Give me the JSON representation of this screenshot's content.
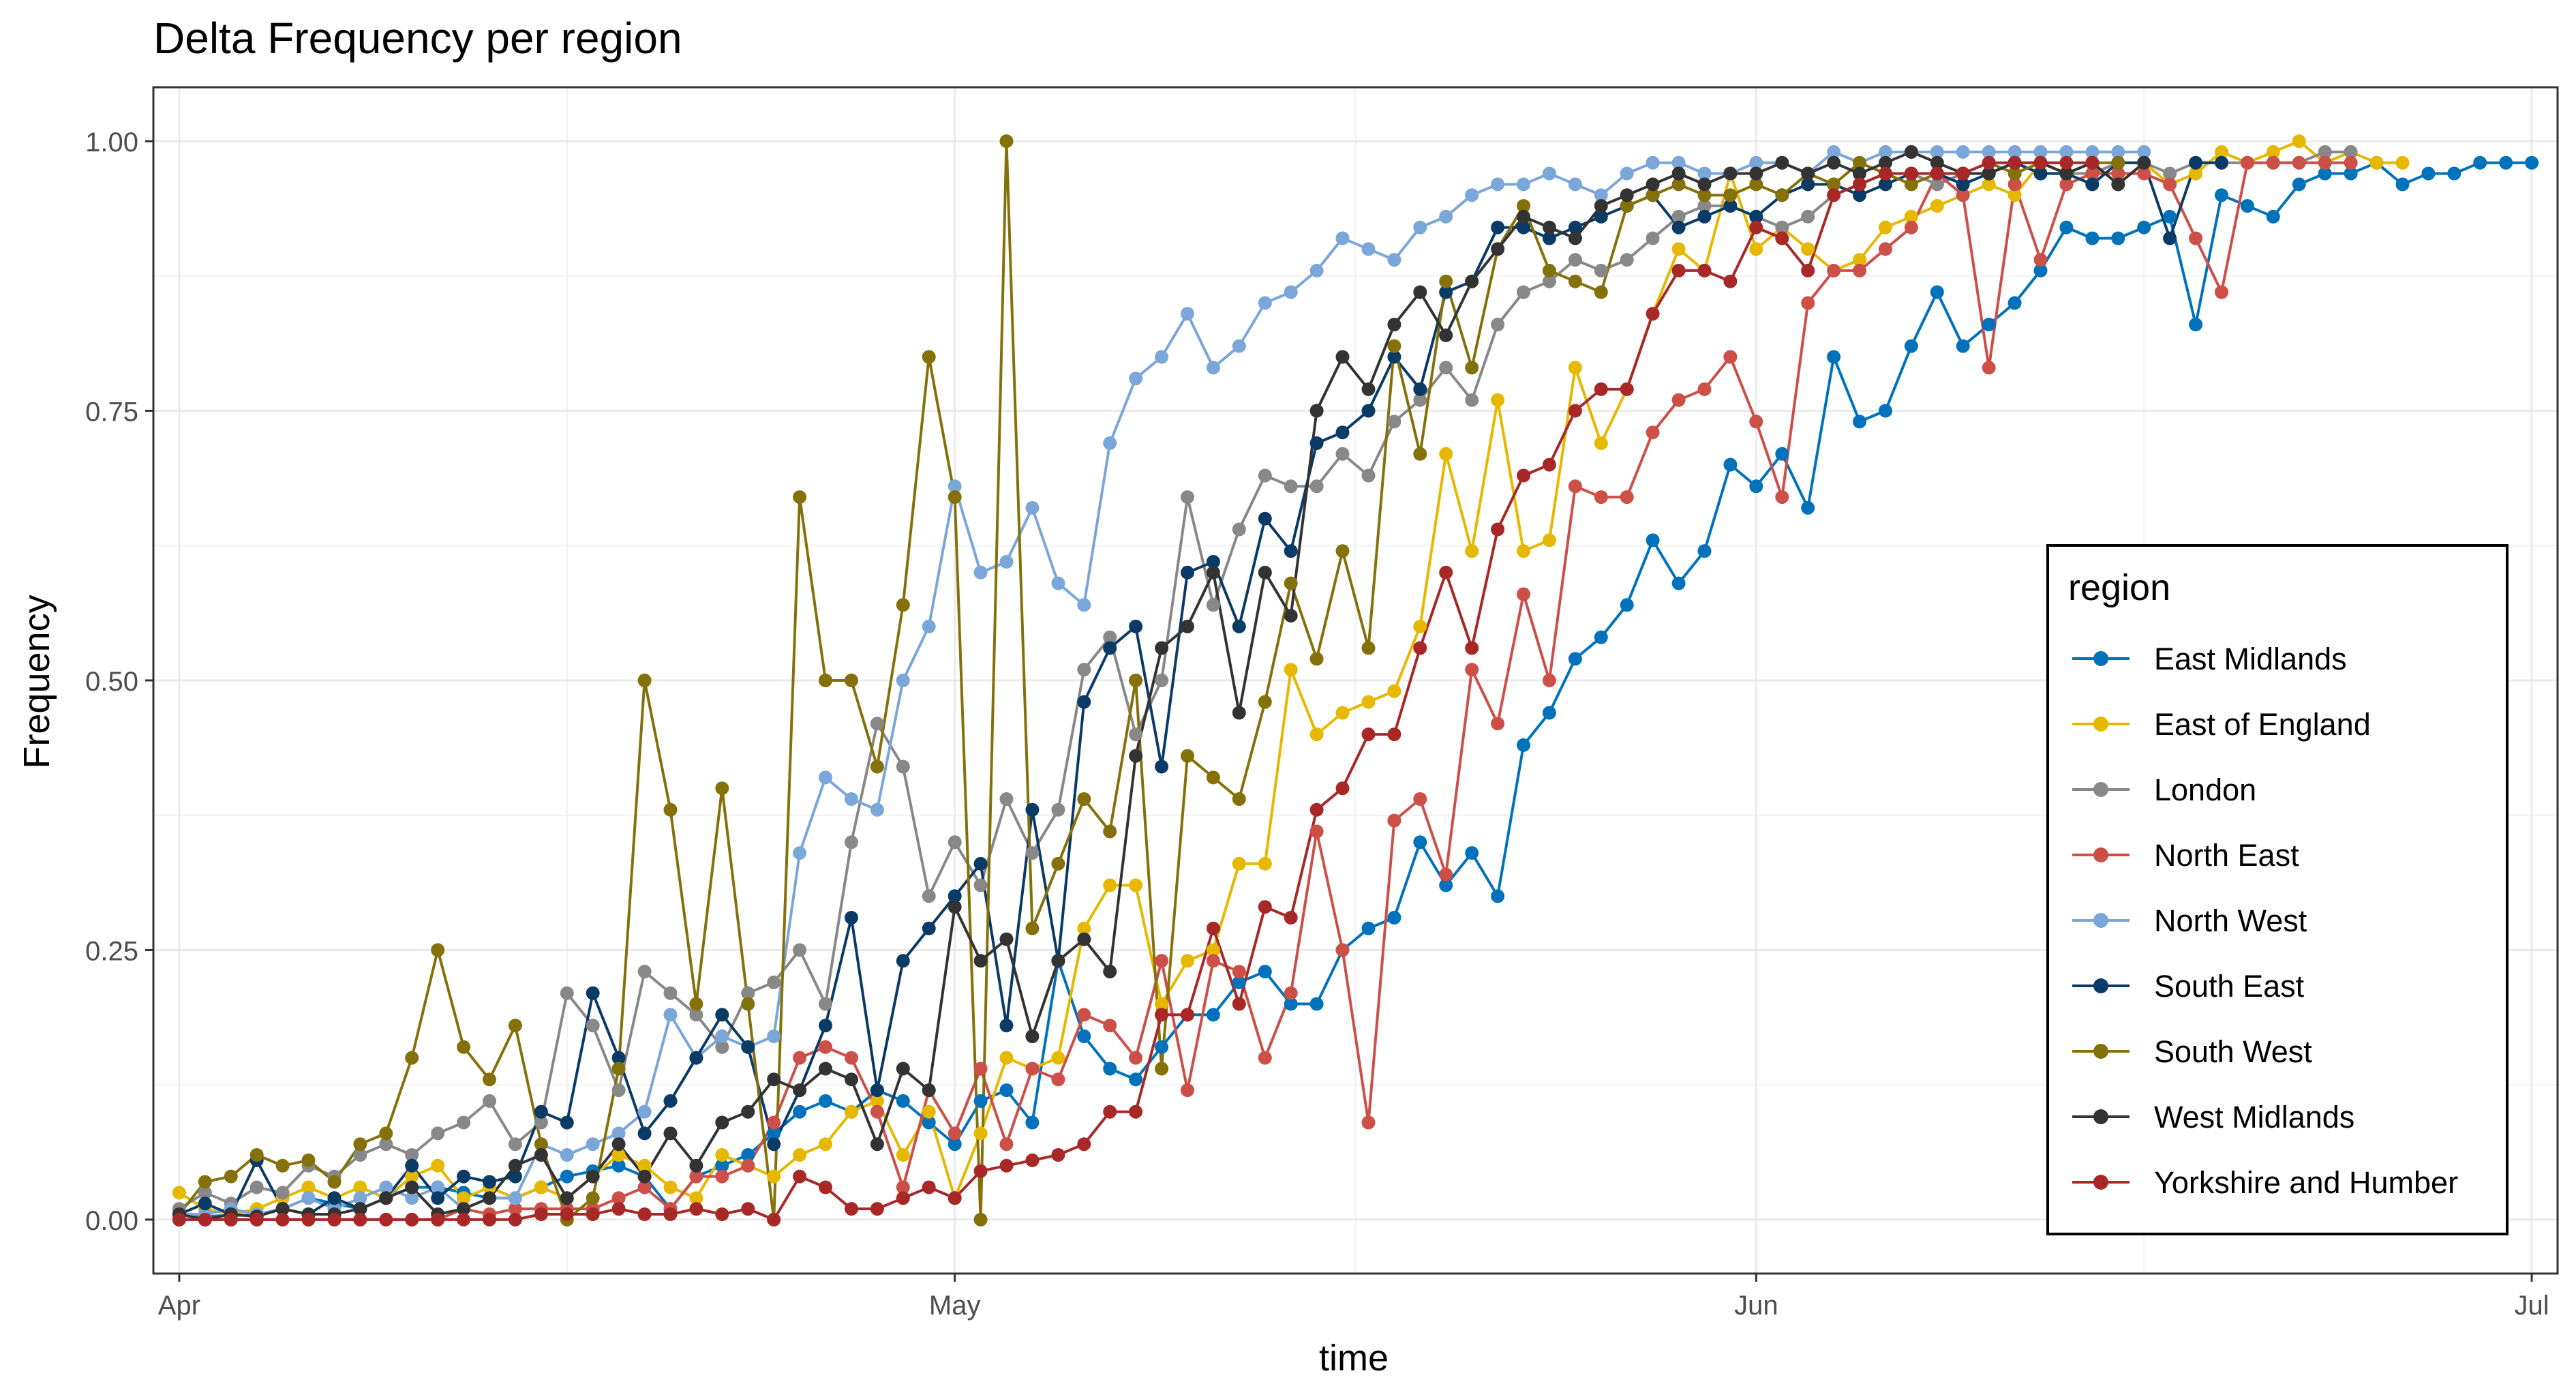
{
  "chart_data": {
    "type": "line",
    "title": "Delta Frequency per region",
    "xlabel": "time",
    "ylabel": "Frequency",
    "xlim": [
      "2021-03-31",
      "2021-07-02"
    ],
    "ylim": [
      -0.05,
      1.05
    ],
    "x_ticks": [
      {
        "date": "2021-04-01",
        "label": "Apr"
      },
      {
        "date": "2021-05-01",
        "label": "May"
      },
      {
        "date": "2021-06-01",
        "label": "Jun"
      },
      {
        "date": "2021-07-01",
        "label": "Jul"
      }
    ],
    "y_ticks": [
      {
        "value": 0,
        "label": "0.00"
      },
      {
        "value": 0.25,
        "label": "0.25"
      },
      {
        "value": 0.5,
        "label": "0.50"
      },
      {
        "value": 0.75,
        "label": "0.75"
      },
      {
        "value": 1,
        "label": "1.00"
      }
    ],
    "grid": true,
    "x_start": "2021-04-01",
    "legend": {
      "title": "region",
      "position": "right"
    },
    "series": [
      {
        "name": "East Midlands",
        "color": "#0072bb",
        "values": [
          0.005,
          0.003,
          0.004,
          0.004,
          0.01,
          0.02,
          0.015,
          0.01,
          0.02,
          0.03,
          0.03,
          0.025,
          0.02,
          0.02,
          0.03,
          0.04,
          0.045,
          0.05,
          0.04,
          0.01,
          0.04,
          0.05,
          0.06,
          0.08,
          0.1,
          0.11,
          0.1,
          0.12,
          0.11,
          0.09,
          0.07,
          0.11,
          0.12,
          0.09,
          0.24,
          0.17,
          0.14,
          0.13,
          0.16,
          0.19,
          0.19,
          0.22,
          0.23,
          0.2,
          0.2,
          0.25,
          0.27,
          0.28,
          0.35,
          0.31,
          0.34,
          0.3,
          0.44,
          0.47,
          0.52,
          0.54,
          0.57,
          0.63,
          0.59,
          0.62,
          0.7,
          0.68,
          0.71,
          0.66,
          0.8,
          0.74,
          0.75,
          0.81,
          0.86,
          0.81,
          0.83,
          0.85,
          0.88,
          0.92,
          0.91,
          0.91,
          0.92,
          0.93,
          0.83,
          0.95,
          0.94,
          0.93,
          0.96,
          0.97,
          0.97,
          0.98,
          0.96,
          0.97,
          0.97,
          0.98,
          0.98,
          0.98
        ]
      },
      {
        "name": "East of England",
        "color": "#e6b800",
        "values": [
          0.025,
          0.01,
          0.005,
          0.01,
          0.02,
          0.03,
          0.02,
          0.03,
          0.02,
          0.04,
          0.05,
          0.02,
          0.03,
          0.02,
          0.03,
          0.02,
          0.04,
          0.06,
          0.05,
          0.03,
          0.02,
          0.06,
          0.05,
          0.04,
          0.06,
          0.07,
          0.1,
          0.11,
          0.06,
          0.1,
          0.02,
          0.08,
          0.15,
          0.14,
          0.15,
          0.27,
          0.31,
          0.31,
          0.2,
          0.24,
          0.25,
          0.33,
          0.33,
          0.51,
          0.45,
          0.47,
          0.48,
          0.49,
          0.55,
          0.71,
          0.62,
          0.76,
          0.62,
          0.63,
          0.79,
          0.72,
          0.77,
          0.84,
          0.9,
          0.88,
          0.97,
          0.9,
          0.92,
          0.9,
          0.88,
          0.89,
          0.92,
          0.93,
          0.94,
          0.95,
          0.96,
          0.95,
          0.98,
          0.97,
          0.98,
          0.96,
          0.98,
          0.96,
          0.97,
          0.99,
          0.98,
          0.99,
          1.0,
          0.98,
          0.99,
          0.98,
          0.98
        ]
      },
      {
        "name": "London",
        "color": "#888888",
        "values": [
          0.01,
          0.025,
          0.015,
          0.03,
          0.025,
          0.05,
          0.04,
          0.06,
          0.07,
          0.06,
          0.08,
          0.09,
          0.11,
          0.07,
          0.09,
          0.21,
          0.18,
          0.12,
          0.23,
          0.21,
          0.19,
          0.16,
          0.21,
          0.22,
          0.25,
          0.2,
          0.35,
          0.46,
          0.42,
          0.3,
          0.35,
          0.31,
          0.39,
          0.34,
          0.38,
          0.51,
          0.54,
          0.45,
          0.5,
          0.67,
          0.57,
          0.64,
          0.69,
          0.68,
          0.68,
          0.71,
          0.69,
          0.74,
          0.76,
          0.79,
          0.76,
          0.83,
          0.86,
          0.87,
          0.89,
          0.88,
          0.89,
          0.91,
          0.93,
          0.94,
          0.94,
          0.93,
          0.92,
          0.93,
          0.95,
          0.96,
          0.97,
          0.97,
          0.96,
          0.97,
          0.97,
          0.98,
          0.97,
          0.97,
          0.97,
          0.98,
          0.98,
          0.97,
          0.98,
          0.98,
          0.98,
          0.98,
          0.98,
          0.99,
          0.99
        ]
      },
      {
        "name": "North East",
        "color": "#cc4f48",
        "values": [
          0,
          0,
          0,
          0,
          0,
          0,
          0,
          0,
          0,
          0,
          0,
          0.01,
          0.005,
          0.01,
          0.01,
          0.01,
          0.01,
          0.02,
          0.03,
          0.01,
          0.04,
          0.04,
          0.05,
          0.09,
          0.15,
          0.16,
          0.15,
          0.1,
          0.03,
          0.12,
          0.08,
          0.14,
          0.07,
          0.14,
          0.13,
          0.19,
          0.18,
          0.15,
          0.24,
          0.12,
          0.24,
          0.23,
          0.15,
          0.21,
          0.36,
          0.25,
          0.09,
          0.37,
          0.39,
          0.32,
          0.51,
          0.46,
          0.58,
          0.5,
          0.68,
          0.67,
          0.67,
          0.73,
          0.76,
          0.77,
          0.8,
          0.74,
          0.67,
          0.85,
          0.88,
          0.88,
          0.9,
          0.92,
          0.97,
          0.95,
          0.79,
          0.96,
          0.89,
          0.96,
          0.97,
          0.97,
          0.97,
          0.96,
          0.91,
          0.86,
          0.98,
          0.98,
          0.98,
          0.98,
          0.98
        ]
      },
      {
        "name": "North West",
        "color": "#7ba6d9",
        "values": [
          0.005,
          0.005,
          0.01,
          0.005,
          0.01,
          0.02,
          0.01,
          0.02,
          0.03,
          0.02,
          0.03,
          0.01,
          0.02,
          0.02,
          0.07,
          0.06,
          0.07,
          0.08,
          0.1,
          0.19,
          0.15,
          0.17,
          0.16,
          0.17,
          0.34,
          0.41,
          0.39,
          0.38,
          0.5,
          0.55,
          0.68,
          0.6,
          0.61,
          0.66,
          0.59,
          0.57,
          0.72,
          0.78,
          0.8,
          0.84,
          0.79,
          0.81,
          0.85,
          0.86,
          0.88,
          0.91,
          0.9,
          0.89,
          0.92,
          0.93,
          0.95,
          0.96,
          0.96,
          0.97,
          0.96,
          0.95,
          0.97,
          0.98,
          0.98,
          0.97,
          0.97,
          0.98,
          0.98,
          0.97,
          0.99,
          0.98,
          0.99,
          0.99,
          0.99,
          0.99,
          0.99,
          0.99,
          0.99,
          0.99,
          0.99,
          0.99,
          0.99
        ]
      },
      {
        "name": "South East",
        "color": "#0a3a66",
        "values": [
          0.005,
          0.015,
          0.005,
          0.055,
          0.01,
          0.005,
          0.02,
          0.01,
          0.02,
          0.05,
          0.02,
          0.04,
          0.035,
          0.04,
          0.1,
          0.09,
          0.21,
          0.15,
          0.08,
          0.11,
          0.15,
          0.19,
          0.16,
          0.07,
          0.12,
          0.18,
          0.28,
          0.12,
          0.24,
          0.27,
          0.3,
          0.33,
          0.18,
          0.38,
          0.24,
          0.48,
          0.53,
          0.55,
          0.42,
          0.6,
          0.61,
          0.55,
          0.65,
          0.62,
          0.72,
          0.73,
          0.75,
          0.8,
          0.77,
          0.86,
          0.87,
          0.92,
          0.92,
          0.91,
          0.92,
          0.93,
          0.94,
          0.95,
          0.92,
          0.93,
          0.94,
          0.93,
          0.95,
          0.96,
          0.96,
          0.95,
          0.96,
          0.97,
          0.97,
          0.96,
          0.97,
          0.98,
          0.97,
          0.97,
          0.96,
          0.98,
          0.98,
          0.91,
          0.98,
          0.98
        ]
      },
      {
        "name": "South West",
        "color": "#85710a",
        "values": [
          0.005,
          0.035,
          0.04,
          0.06,
          0.05,
          0.055,
          0.035,
          0.07,
          0.08,
          0.15,
          0.25,
          0.16,
          0.13,
          0.18,
          0.07,
          0.0,
          0.02,
          0.14,
          0.5,
          0.38,
          0.2,
          0.4,
          0.2,
          0.0,
          0.67,
          0.5,
          0.5,
          0.42,
          0.57,
          0.8,
          0.67,
          0.0,
          1.0,
          0.27,
          0.33,
          0.39,
          0.36,
          0.5,
          0.14,
          0.43,
          0.41,
          0.39,
          0.48,
          0.59,
          0.52,
          0.62,
          0.53,
          0.81,
          0.71,
          0.87,
          0.79,
          0.9,
          0.94,
          0.88,
          0.87,
          0.86,
          0.94,
          0.95,
          0.96,
          0.95,
          0.95,
          0.96,
          0.95,
          0.97,
          0.96,
          0.98,
          0.97,
          0.96,
          0.97,
          0.97,
          0.98,
          0.97,
          0.98,
          0.97,
          0.98,
          0.98
        ]
      },
      {
        "name": "West Midlands",
        "color": "#333333",
        "values": [
          0.005,
          0.0,
          0.005,
          0.003,
          0.01,
          0.005,
          0.005,
          0.01,
          0.02,
          0.03,
          0.005,
          0.01,
          0.02,
          0.05,
          0.06,
          0.02,
          0.04,
          0.07,
          0.04,
          0.08,
          0.05,
          0.09,
          0.1,
          0.13,
          0.12,
          0.14,
          0.13,
          0.07,
          0.14,
          0.12,
          0.29,
          0.24,
          0.26,
          0.17,
          0.24,
          0.26,
          0.23,
          0.43,
          0.53,
          0.55,
          0.6,
          0.47,
          0.6,
          0.56,
          0.75,
          0.8,
          0.77,
          0.83,
          0.86,
          0.82,
          0.87,
          0.9,
          0.93,
          0.92,
          0.91,
          0.94,
          0.95,
          0.96,
          0.97,
          0.96,
          0.97,
          0.97,
          0.98,
          0.97,
          0.98,
          0.97,
          0.98,
          0.99,
          0.98,
          0.97,
          0.97,
          0.98,
          0.98,
          0.97,
          0.98,
          0.96,
          0.98
        ]
      },
      {
        "name": "Yorkshire and Humber",
        "color": "#a82828",
        "values": [
          0,
          0,
          0,
          0,
          0,
          0,
          0,
          0,
          0,
          0,
          0,
          0,
          0,
          0,
          0.005,
          0.005,
          0.005,
          0.01,
          0.005,
          0.005,
          0.01,
          0.005,
          0.01,
          0.0,
          0.04,
          0.03,
          0.01,
          0.01,
          0.02,
          0.03,
          0.02,
          0.045,
          0.05,
          0.055,
          0.06,
          0.07,
          0.1,
          0.1,
          0.19,
          0.19,
          0.27,
          0.2,
          0.29,
          0.28,
          0.38,
          0.4,
          0.45,
          0.45,
          0.53,
          0.6,
          0.53,
          0.64,
          0.69,
          0.7,
          0.75,
          0.77,
          0.77,
          0.84,
          0.88,
          0.88,
          0.87,
          0.92,
          0.91,
          0.88,
          0.95,
          0.96,
          0.97,
          0.97,
          0.97,
          0.97,
          0.98,
          0.98,
          0.98,
          0.98,
          0.98
        ]
      }
    ]
  }
}
